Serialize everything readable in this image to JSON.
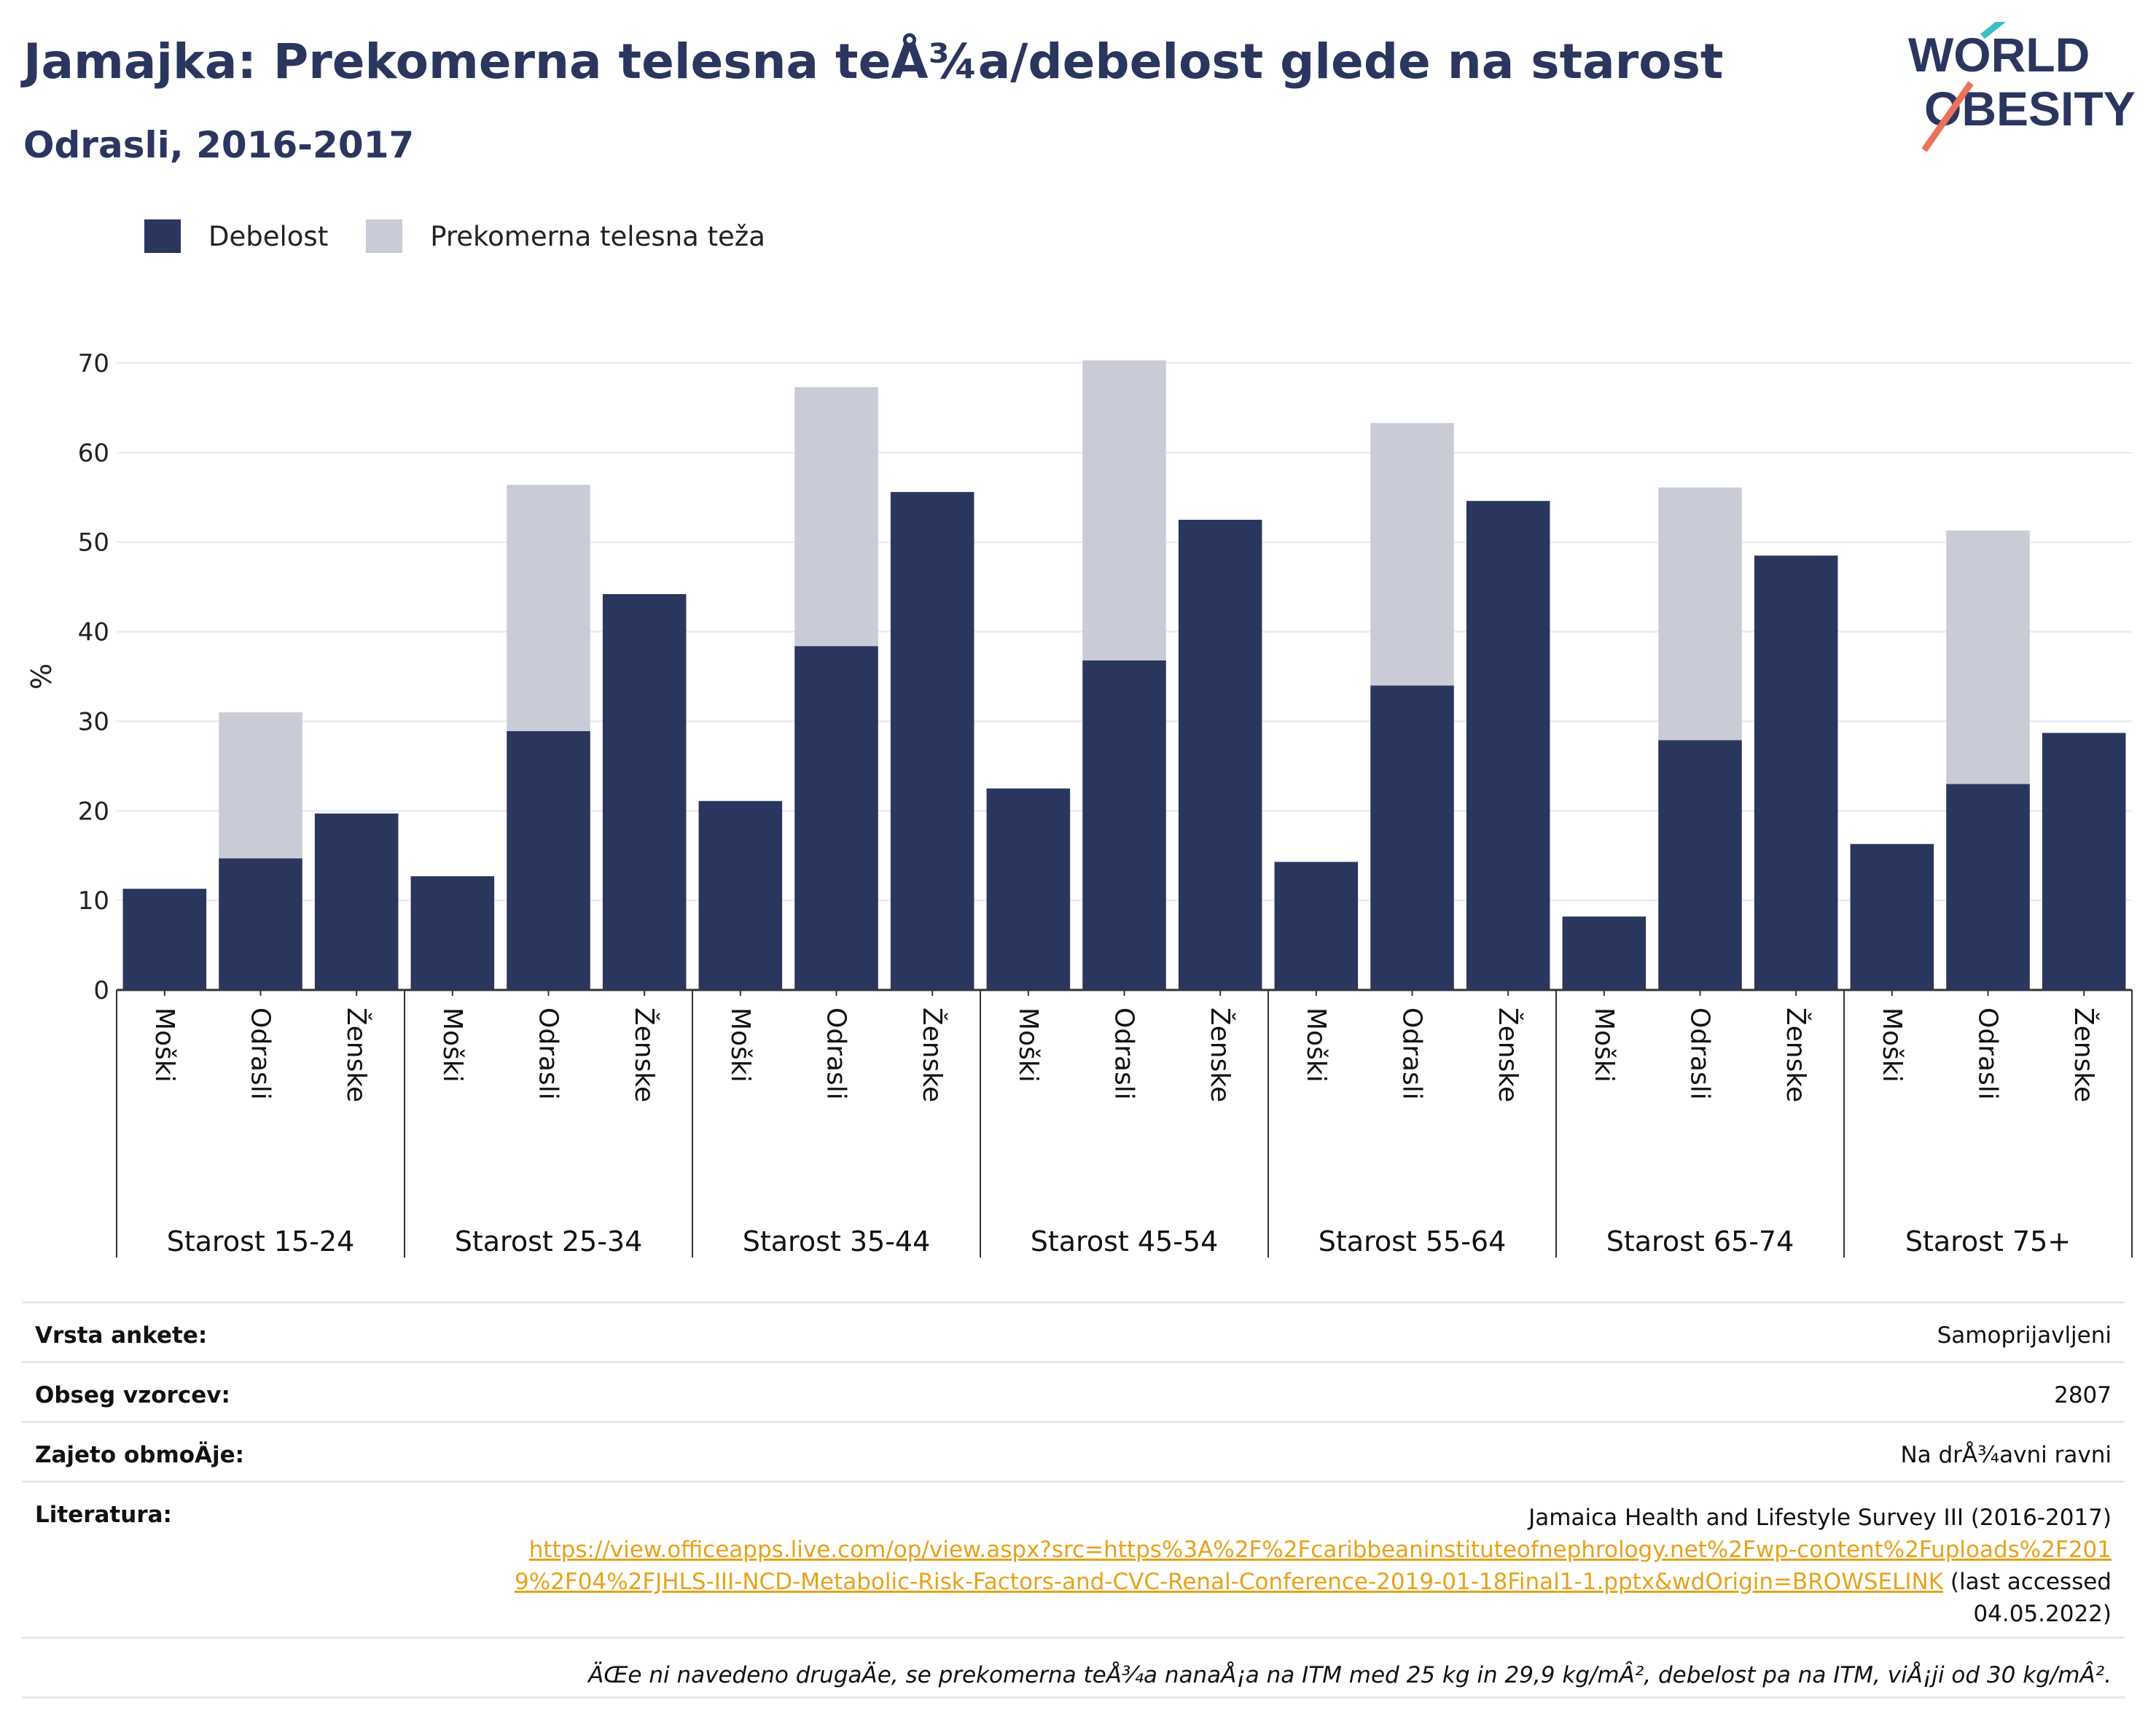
{
  "header": {
    "title": "Jamajka: Prekomerna telesna teÅ¾a/debelost glede na starost",
    "subtitle": "Odrasli, 2016-2017"
  },
  "logo": {
    "line1": "WORLD",
    "line2": "OBESITY",
    "colors": {
      "text": "#2b365f",
      "slash_top": "#3bbfbf",
      "slash_bottom": "#e8735a"
    }
  },
  "legend": {
    "obesity": "Debelost",
    "overweight": "Prekomerna telesna teža"
  },
  "colors": {
    "obesity": "#2b365f",
    "overweight": "#c9ccd7",
    "grid": "#e6e8ee",
    "axis": "#333333"
  },
  "chart_data": {
    "type": "bar",
    "stacked": true,
    "ylabel": "%",
    "ylim": [
      0,
      70
    ],
    "yticks": [
      0,
      10,
      20,
      30,
      40,
      50,
      60,
      70
    ],
    "grid": true,
    "legend_position": "top-left",
    "groups": [
      "Starost 15-24",
      "Starost 25-34",
      "Starost 35-44",
      "Starost 45-54",
      "Starost 55-64",
      "Starost 65-74",
      "Starost 75+"
    ],
    "subcategories": [
      "Moški",
      "Odrasli",
      "Ženske"
    ],
    "series": [
      {
        "name": "Debelost",
        "values": [
          [
            11.3,
            14.7,
            19.7
          ],
          [
            12.7,
            28.9,
            44.2
          ],
          [
            21.1,
            38.4,
            55.6
          ],
          [
            22.5,
            36.8,
            52.5
          ],
          [
            14.3,
            34.0,
            54.6
          ],
          [
            8.2,
            27.9,
            48.5
          ],
          [
            16.3,
            23.0,
            28.7
          ]
        ]
      },
      {
        "name": "Prekomerna telesna teža",
        "values": [
          [
            null,
            16.3,
            null
          ],
          [
            null,
            27.5,
            null
          ],
          [
            null,
            28.9,
            null
          ],
          [
            null,
            33.5,
            null
          ],
          [
            null,
            29.3,
            null
          ],
          [
            null,
            28.2,
            null
          ],
          [
            null,
            28.3,
            null
          ]
        ]
      }
    ]
  },
  "info": {
    "survey_type_label": "Vrsta ankete:",
    "survey_type_value": "Samoprijavljeni",
    "sample_size_label": "Obseg vzorcev:",
    "sample_size_value": "2807",
    "coverage_label": "Zajeto obmoÄje:",
    "coverage_value": "Na drÅ¾avni ravni",
    "literature_label": "Literatura:",
    "literature_title": "Jamaica Health and Lifestyle Survey III (2016-2017)",
    "literature_url": "https://view.officeapps.live.com/op/view.aspx?src=https%3A%2F%2Fcaribbeaninstituteofnephrology.net%2Fwp-content%2Fuploads%2F2019%2F04%2FJHLS-III-NCD-Metabolic-Risk-Factors-and-CVC-Renal-Conference-2019-01-18Final1-1.pptx&wdOrigin=BROWSELINK",
    "literature_accessed": " (last accessed 04.05.2022)",
    "note": "ÄŒe ni navedeno drugaÄe, se prekomerna teÅ¾a nanaÅ¡a na ITM med 25 kg in 29,9 kg/mÂ², debelost pa na ITM, viÅ¡ji od 30 kg/mÂ²."
  }
}
